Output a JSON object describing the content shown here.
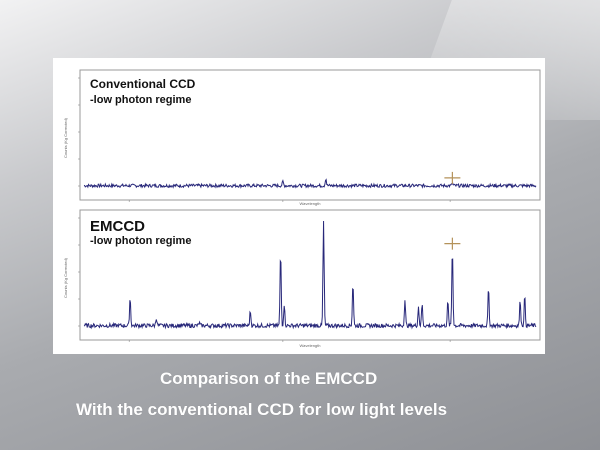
{
  "colors": {
    "trace": "#28287a",
    "frame": "#9a9a9a",
    "caption": "#ffffff"
  },
  "caption": {
    "line1": "Comparison of the EMCCD",
    "line2": "With the conventional CCD for low light levels"
  },
  "chart_data": [
    {
      "type": "line",
      "title": "Conventional CCD",
      "subtitle": "-low photon regime",
      "xlabel": "Wavelength",
      "ylabel": "Counts (Kg Corrected)",
      "xlim": [
        0,
        100
      ],
      "ylim": [
        0,
        8000
      ],
      "grid": false,
      "peaks": [
        {
          "x": 44.0,
          "y": 300
        },
        {
          "x": 53.5,
          "y": 550
        },
        {
          "x": 81.5,
          "y": 180
        }
      ],
      "noise": 120,
      "marker": {
        "x": 81.5,
        "y": 600
      }
    },
    {
      "type": "line",
      "title": "EMCCD",
      "subtitle": "-low photon regime",
      "xlabel": "Wavelength",
      "ylabel": "Counts (Kg Corrected)",
      "xlim": [
        0,
        100
      ],
      "ylim": [
        0,
        8000
      ],
      "grid": false,
      "peaks": [
        {
          "x": 10.2,
          "y": 2100
        },
        {
          "x": 16.0,
          "y": 600
        },
        {
          "x": 25.5,
          "y": 200
        },
        {
          "x": 36.8,
          "y": 1100
        },
        {
          "x": 43.5,
          "y": 5500
        },
        {
          "x": 44.3,
          "y": 1600
        },
        {
          "x": 53.0,
          "y": 7700
        },
        {
          "x": 59.5,
          "y": 3200
        },
        {
          "x": 71.0,
          "y": 1900
        },
        {
          "x": 74.0,
          "y": 1400
        },
        {
          "x": 74.8,
          "y": 1600
        },
        {
          "x": 80.5,
          "y": 1800
        },
        {
          "x": 81.5,
          "y": 5800
        },
        {
          "x": 89.5,
          "y": 2800
        },
        {
          "x": 96.5,
          "y": 1900
        },
        {
          "x": 97.5,
          "y": 2200
        }
      ],
      "noise": 150,
      "marker": {
        "x": 81.5,
        "y": 6100
      }
    }
  ]
}
